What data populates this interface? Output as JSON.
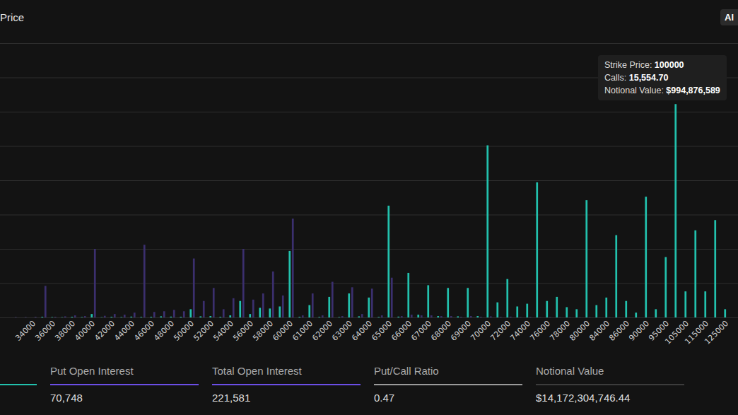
{
  "chart_data": {
    "type": "bar",
    "title": "Price",
    "categories": [
      null,
      null,
      "34000",
      null,
      "36000",
      null,
      "38000",
      null,
      "40000",
      null,
      "42000",
      null,
      "44000",
      null,
      "46000",
      null,
      "48000",
      null,
      "50000",
      null,
      "52000",
      null,
      "54000",
      null,
      "56000",
      null,
      "58000",
      null,
      "60000",
      null,
      "61000",
      null,
      "62000",
      null,
      "63000",
      null,
      "64000",
      null,
      "65000",
      null,
      "66000",
      null,
      "67000",
      null,
      "68000",
      null,
      "69000",
      null,
      "70000",
      null,
      "72000",
      null,
      "74000",
      null,
      "76000",
      null,
      "78000",
      null,
      "80000",
      null,
      "84000",
      null,
      "86000",
      null,
      "90000",
      null,
      "95000",
      null,
      "105000",
      null,
      "115000",
      null,
      "125000"
    ],
    "series": [
      {
        "color": "#22c1ad",
        "values": [
          0,
          0,
          0,
          50,
          30,
          20,
          50,
          30,
          250,
          20,
          50,
          30,
          60,
          40,
          50,
          80,
          60,
          50,
          600,
          80,
          100,
          50,
          150,
          1200,
          250,
          700,
          650,
          800,
          4850,
          50,
          900,
          40,
          1500,
          30,
          1750,
          80,
          1450,
          40,
          8150,
          60,
          3250,
          200,
          2350,
          100,
          2150,
          80,
          2150,
          100,
          12550,
          1100,
          2800,
          800,
          1000,
          9850,
          1200,
          1500,
          750,
          600,
          8550,
          900,
          1450,
          6000,
          1200,
          350,
          8800,
          600,
          4400,
          15554.7,
          1900,
          6350,
          1900,
          7100,
          600
        ]
      },
      {
        "color": "#3b2f6e",
        "values": [
          30,
          30,
          50,
          2300,
          50,
          80,
          150,
          100,
          5000,
          120,
          250,
          200,
          350,
          5300,
          400,
          450,
          550,
          450,
          4300,
          1200,
          2150,
          600,
          1400,
          5000,
          1300,
          1750,
          3350,
          1600,
          7200,
          150,
          1750,
          150,
          2600,
          100,
          2200,
          250,
          2100,
          150,
          2900,
          100,
          200,
          150,
          150,
          100,
          100,
          50,
          100,
          50,
          80,
          40,
          60,
          30,
          40,
          20,
          30,
          20,
          20,
          20,
          20,
          10,
          20,
          10,
          10,
          10,
          10,
          10,
          0,
          10,
          0,
          0,
          0,
          0,
          0
        ]
      }
    ],
    "ylim": [
      0,
      20000
    ],
    "yticks": [
      0,
      2500,
      5000,
      7500,
      10000,
      12500,
      15000,
      17500,
      20000
    ],
    "grid": true,
    "tick_labels": "x",
    "annotations": [
      {
        "label": "Strike Price:",
        "value": "100000"
      },
      {
        "label": "Calls:",
        "value": "15,554.70"
      },
      {
        "label": "Notional Value:",
        "value": "$994,876,589"
      }
    ]
  },
  "button": "Al",
  "stats": [
    {
      "color": "#22c1ad"
    },
    {
      "label": "Put Open Interest",
      "value": "70,748",
      "color": "#6b4ee6"
    },
    {
      "label": "Total Open Interest",
      "value": "221,581",
      "color": "#6b4ee6"
    },
    {
      "label": "Put/Call Ratio",
      "value": "0.47",
      "color": "#9a9a9a"
    },
    {
      "label": "Notional Value",
      "value": "$14,172,304,746.44",
      "color": "#3c3c3c"
    }
  ]
}
